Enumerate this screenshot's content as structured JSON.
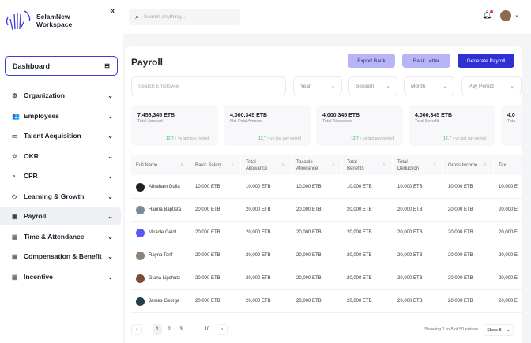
{
  "app": {
    "name_line1": "SelamNew",
    "name_line2": "Workspace"
  },
  "sidebar": {
    "dashboard": "Dashboard",
    "items": [
      {
        "label": "Organization",
        "icon": "gear-icon",
        "glyph": "⚙"
      },
      {
        "label": "Employees",
        "icon": "users-icon",
        "glyph": "👥"
      },
      {
        "label": "Talent Acquisition",
        "icon": "briefcase-icon",
        "glyph": "▭"
      },
      {
        "label": "OKR",
        "icon": "star-icon",
        "glyph": "☆"
      },
      {
        "label": "CFR",
        "icon": "user-icon",
        "glyph": "◔"
      },
      {
        "label": "Learning & Growth",
        "icon": "graduation-icon",
        "glyph": "◇"
      },
      {
        "label": "Payroll",
        "icon": "wallet-icon",
        "glyph": "▣",
        "active": true
      },
      {
        "label": "Time & Attendance",
        "icon": "calendar-icon",
        "glyph": "▤"
      },
      {
        "label": "Compensation & Benefit",
        "icon": "calendar-icon",
        "glyph": "▤"
      },
      {
        "label": "Incentive",
        "icon": "calendar-icon",
        "glyph": "▤"
      }
    ]
  },
  "topbar": {
    "search_placeholder": "Search anything..."
  },
  "page": {
    "title": "Payroll",
    "export_bank": "Export Bank",
    "bank_letter": "Bank Letter",
    "generate": "Generate Payroll"
  },
  "filters": {
    "search_placeholder": "Search Employee",
    "year": "Year",
    "session": "Session",
    "month": "Month",
    "pay_period": "Pay Period"
  },
  "stats": [
    {
      "value": "7,456,345 ETB",
      "label": "Total Amount",
      "trend": "12.7",
      "trend_text": "vs last pay period"
    },
    {
      "value": "4,000,345 ETB",
      "label": "Net Paid Amount",
      "trend": "12.7",
      "trend_text": "vs last pay period"
    },
    {
      "value": "4,000,345 ETB",
      "label": "Total Allowance",
      "trend": "12.7",
      "trend_text": "vs last pay period"
    },
    {
      "value": "4,000,345 ETB",
      "label": "Total Benefit",
      "trend": "12.7",
      "trend_text": "vs last pay period"
    },
    {
      "value": "4,0",
      "label": "Tota",
      "trend": "",
      "trend_text": ""
    }
  ],
  "table": {
    "headers": [
      "Full Name",
      "Basic Salary",
      "Total Allowance",
      "Taxable Allowance",
      "Total Benefits",
      "Total Deduction",
      "Gross Income",
      "Tax"
    ],
    "rows": [
      {
        "name": "Abraham Dulla",
        "avatar": "#222",
        "values": [
          "10,000 ETB",
          "10,000 ETB",
          "10,000 ETB",
          "10,000 ETB",
          "10,000 ETB",
          "10,000 ETB",
          "10,000 E"
        ]
      },
      {
        "name": "Hanna Baptista",
        "avatar": "#7a8a9a",
        "values": [
          "20,000 ETB",
          "20,000 ETB",
          "20,000 ETB",
          "20,000 ETB",
          "20,000 ETB",
          "20,000 ETB",
          "20,000 E"
        ]
      },
      {
        "name": "Miracle Geidt",
        "avatar": "#5b5bf0",
        "values": [
          "20,000 ETB",
          "20,000 ETB",
          "20,000 ETB",
          "20,000 ETB",
          "20,000 ETB",
          "20,000 ETB",
          "20,000 E"
        ]
      },
      {
        "name": "Rayna Torff",
        "avatar": "#8f8378",
        "values": [
          "20,000 ETB",
          "20,000 ETB",
          "20,000 ETB",
          "20,000 ETB",
          "20,000 ETB",
          "20,000 ETB",
          "20,000 E"
        ]
      },
      {
        "name": "Giana Lipshutz",
        "avatar": "#7a4a3a",
        "values": [
          "20,000 ETB",
          "20,000 ETB",
          "20,000 ETB",
          "20,000 ETB",
          "20,000 ETB",
          "20,000 ETB",
          "20,000 E"
        ]
      },
      {
        "name": "James George",
        "avatar": "#23404a",
        "values": [
          "20,000 ETB",
          "20,000 ETB",
          "20,000 ETB",
          "20,000 ETB",
          "20,000 ETB",
          "20,000 ETB",
          "20,000 E"
        ]
      }
    ]
  },
  "pagination": {
    "pages": [
      "1",
      "2",
      "3",
      "...",
      "10"
    ],
    "current": "1",
    "info": "Showing 1 to 8 of 50 entries",
    "show": "Show 8"
  },
  "colors": {
    "accent": "#2f2fd6",
    "soft": "#b7b5f5",
    "trend": "#2db36b"
  }
}
